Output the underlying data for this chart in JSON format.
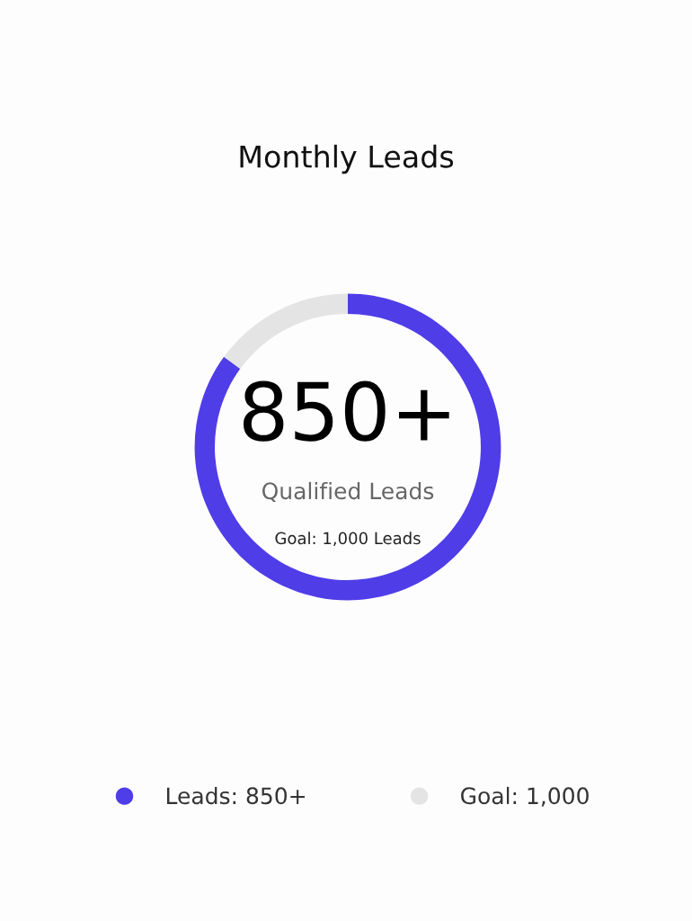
{
  "chart_data": {
    "type": "donut",
    "title": "Monthly Leads",
    "categories": [
      "Leads: 850+",
      "Goal: 1,000"
    ],
    "values": [
      850,
      150
    ],
    "colors": [
      "#4f3de8",
      "#e4e4e4"
    ],
    "annotations": [
      "850+",
      "Qualified Leads",
      "Goal: 1,000 Leads"
    ],
    "legend": "bottom"
  }
}
